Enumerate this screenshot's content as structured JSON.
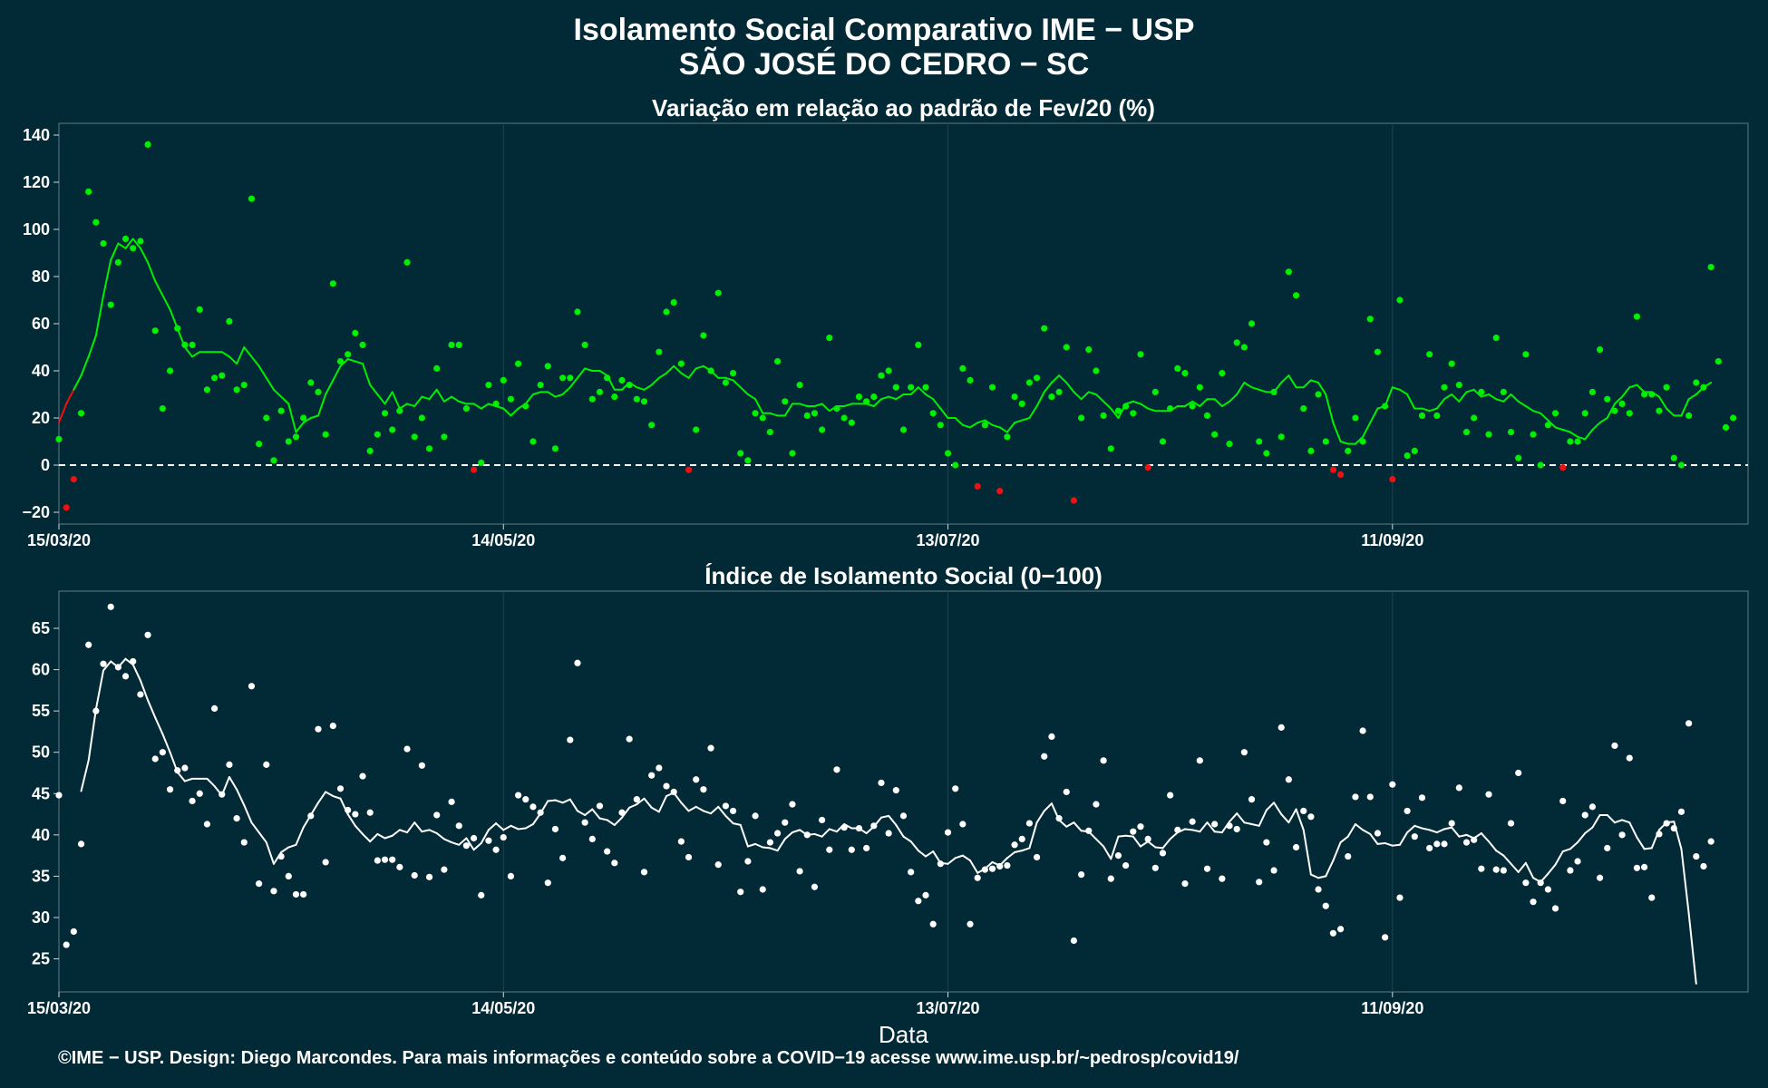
{
  "header": {
    "title": "Isolamento Social Comparativo IME − USP",
    "subtitle": "SÃO JOSÉ DO CEDRO − SC"
  },
  "footer": "©IME − USP. Design: Diego Marcondes. Para mais informações e conteúdo sobre a COVID−19 acesse www.ime.usp.br/~pedrosp/covid19/",
  "colors": {
    "background": "#022a36",
    "above_zero": "#00ee00",
    "below_zero": "#ee1111",
    "index_series": "#ffffff",
    "zero_line": "#ffffff"
  },
  "chart_data": [
    {
      "type": "scatter",
      "title": "Variação em relação ao padrão de Fev/20 (%)",
      "xlabel": "",
      "ylabel": "",
      "xlim": [
        "2020-03-15",
        "2020-10-29"
      ],
      "ylim": [
        -25,
        145
      ],
      "yticks": [
        140,
        120,
        100,
        80,
        60,
        40,
        20,
        0,
        -20
      ],
      "xticks": [
        "15/03/20",
        "14/05/20",
        "13/07/20",
        "11/09/20"
      ],
      "reference_line": 0,
      "grid": true,
      "start_date": "2020-03-15",
      "points": [
        11,
        -18,
        -6,
        22,
        116,
        103,
        94,
        68,
        86,
        96,
        92,
        95,
        136,
        57,
        24,
        40,
        58,
        51,
        51,
        66,
        32,
        37,
        38,
        61,
        32,
        34,
        113,
        9,
        20,
        2,
        23,
        10,
        12,
        20,
        35,
        31,
        13,
        77,
        44,
        47,
        56,
        51,
        6,
        13,
        22,
        15,
        23,
        86,
        12,
        20,
        7,
        41,
        12,
        51,
        51,
        24,
        -2,
        1,
        34,
        26,
        36,
        28,
        43,
        25,
        10,
        34,
        42,
        7,
        37,
        37,
        65,
        51,
        28,
        31,
        37,
        29,
        36,
        34,
        28,
        27,
        17,
        48,
        65,
        69,
        43,
        -2,
        15,
        55,
        40,
        73,
        35,
        39,
        5,
        2,
        22,
        20,
        14,
        44,
        27,
        5,
        34,
        21,
        22,
        15,
        54,
        24,
        20,
        18,
        29,
        27,
        29,
        38,
        40,
        33,
        15,
        33,
        51,
        33,
        22,
        17,
        5,
        0,
        41,
        36,
        -9,
        17,
        33,
        -11,
        12,
        29,
        26,
        35,
        37,
        58,
        29,
        31,
        50,
        -15,
        20,
        49,
        40,
        21,
        7,
        23,
        25,
        22,
        47,
        -1,
        31,
        10,
        24,
        41,
        39,
        25,
        33,
        21,
        13,
        39,
        9,
        52,
        50,
        60,
        10,
        5,
        31,
        12,
        82,
        72,
        24,
        6,
        30,
        10,
        -2,
        -4,
        6,
        20,
        10,
        62,
        48,
        25,
        -6,
        70,
        4,
        6,
        21,
        47,
        21,
        33,
        43,
        34,
        14,
        20,
        31,
        13,
        54,
        31,
        14,
        3,
        47,
        13,
        0,
        17,
        22,
        -1,
        10,
        10,
        22,
        31,
        49,
        28,
        23,
        26,
        22,
        63,
        30,
        30,
        23,
        33,
        3,
        0,
        21,
        35,
        33,
        84,
        44,
        16,
        20
      ],
      "moving_average": [
        18,
        26,
        32,
        38,
        46,
        55,
        72,
        87,
        94,
        92,
        96,
        92,
        86,
        78,
        72,
        66,
        58,
        50,
        46,
        48,
        48,
        48,
        48,
        46,
        43,
        50,
        46,
        42,
        37,
        32,
        29,
        26,
        14,
        18,
        20,
        21,
        30,
        36,
        42,
        45,
        44,
        43,
        34,
        30,
        26,
        31,
        24,
        26,
        25,
        29,
        28,
        32,
        27,
        29,
        27,
        26,
        26,
        24,
        26,
        25,
        24,
        21,
        24,
        26,
        30,
        31,
        31,
        29,
        30,
        33,
        37,
        41,
        40,
        40,
        38,
        32,
        32,
        35,
        33,
        32,
        34,
        37,
        39,
        42,
        39,
        37,
        41,
        42,
        40,
        37,
        37,
        36,
        33,
        30,
        28,
        22,
        22,
        21,
        21,
        26,
        26,
        25,
        25,
        26,
        23,
        25,
        25,
        26,
        26,
        26,
        25,
        28,
        29,
        28,
        30,
        30,
        33,
        30,
        28,
        24,
        20,
        20,
        17,
        16,
        18,
        19,
        17,
        16,
        14,
        18,
        19,
        20,
        25,
        31,
        35,
        38,
        35,
        31,
        28,
        31,
        30,
        27,
        24,
        20,
        26,
        27,
        26,
        24,
        23,
        23,
        23,
        25,
        25,
        27,
        25,
        28,
        28,
        25,
        27,
        30,
        35,
        33,
        32,
        31,
        31,
        35,
        38,
        33,
        33,
        36,
        35,
        30,
        18,
        10,
        9,
        9,
        12,
        18,
        24,
        25,
        33,
        32,
        30,
        24,
        24,
        23,
        24,
        28,
        30,
        27,
        31,
        32,
        29,
        30,
        28,
        27,
        30,
        27,
        25,
        23,
        22,
        19,
        16,
        15,
        14,
        12,
        11,
        15,
        18,
        20,
        26,
        29,
        33,
        34,
        31,
        31,
        29,
        24,
        21,
        21,
        28,
        30,
        33,
        35
      ]
    },
    {
      "type": "scatter",
      "title": "Índice de Isolamento Social (0−100)",
      "xlabel": "Data",
      "ylabel": "",
      "xlim": [
        "2020-03-15",
        "2020-10-29"
      ],
      "ylim": [
        21,
        69.5
      ],
      "yticks": [
        65,
        60,
        55,
        50,
        45,
        40,
        35,
        30,
        25
      ],
      "xticks": [
        "15/03/20",
        "14/05/20",
        "13/07/20",
        "11/09/20"
      ],
      "grid": true,
      "start_date": "2020-03-15",
      "points": [
        44.8,
        26.7,
        28.3,
        38.9,
        63,
        55,
        60.7,
        67.6,
        60.3,
        59.2,
        61,
        57,
        64.2,
        49.2,
        50,
        45.5,
        47.8,
        48.1,
        44.1,
        45,
        41.3,
        55.3,
        44.9,
        48.5,
        42,
        39.1,
        58,
        34.1,
        48.5,
        33.2,
        37.4,
        35,
        32.8,
        32.8,
        42.3,
        52.8,
        36.7,
        53.2,
        45.6,
        43,
        42.5,
        47.1,
        42.7,
        36.9,
        37,
        37,
        36.1,
        50.4,
        35.1,
        48.4,
        34.9,
        42.4,
        35.8,
        44,
        41.1,
        38.7,
        39.6,
        32.7,
        39.3,
        38.2,
        39.7,
        35,
        44.8,
        44.3,
        43.4,
        42.7,
        34.2,
        40.7,
        37.2,
        51.5,
        60.8,
        41.5,
        39.5,
        43.5,
        38,
        36.6,
        42.7,
        51.6,
        44.3,
        35.5,
        47.2,
        48.1,
        45.9,
        45.2,
        39.2,
        37.3,
        46.7,
        45.5,
        50.5,
        36.4,
        43.5,
        42.9,
        33.1,
        36.8,
        42.3,
        33.4,
        39.1,
        40.2,
        41.5,
        43.7,
        35.6,
        40,
        33.7,
        41.8,
        38.2,
        47.9,
        40.9,
        38.2,
        40.8,
        38.4,
        41.1,
        46.3,
        40.2,
        45.4,
        42.3,
        35.5,
        32,
        32.7,
        29.2,
        36.5,
        40.3,
        45.6,
        41.3,
        29.2,
        34.8,
        35.8,
        35.9,
        36.2,
        36.3,
        38.8,
        39.5,
        41.4,
        37.3,
        49.5,
        51.9,
        42,
        45.2,
        27.2,
        35.2,
        40.5,
        43.7,
        49,
        34.7,
        37.5,
        36.3,
        40.4,
        41,
        39.5,
        36,
        37.8,
        44.8,
        40.6,
        34.1,
        41.6,
        49,
        35.9,
        41.3,
        34.7,
        41.1,
        40.7,
        50,
        44.3,
        34.3,
        39.1,
        35.7,
        53,
        46.7,
        38.5,
        42.9,
        42.2,
        33.4,
        31.4,
        28.1,
        28.6,
        37.4,
        44.6,
        52.6,
        44.6,
        40.2,
        27.6,
        46.1,
        32.4,
        42.9,
        39.8,
        44.5,
        38.4,
        38.9,
        38.9,
        41.4,
        45.7,
        39.1,
        39.4,
        35.9,
        44.9,
        35.8,
        35.7,
        41.4,
        47.5,
        34.2,
        31.9,
        34.2,
        33.4,
        31.1,
        44.1,
        35.7,
        36.8,
        42.4,
        43.4,
        34.8,
        38.4,
        50.8,
        40,
        49.3,
        36,
        36.1,
        32.4,
        40.1,
        41.4,
        40.8,
        42.8,
        53.5,
        37.4,
        36.2,
        39.2
      ],
      "moving_average": [
        null,
        null,
        null,
        45.3,
        49,
        55.2,
        59.9,
        61,
        60.3,
        61.3,
        60.6,
        58.7,
        56.3,
        54.2,
        52.2,
        50,
        47.6,
        46.5,
        46.8,
        46.8,
        46.8,
        45.9,
        44.8,
        47,
        45.5,
        43.6,
        41.5,
        40.3,
        39.1,
        36.5,
        37.9,
        38.5,
        38.8,
        40.9,
        42.4,
        43.9,
        45.2,
        44.7,
        44.4,
        42.5,
        41.1,
        40.1,
        39.2,
        40.1,
        39.6,
        39.9,
        40.6,
        40.3,
        41.5,
        40.4,
        40.6,
        40.2,
        39.5,
        39.1,
        38.8,
        39.6,
        38.2,
        39,
        40.6,
        41.4,
        40.6,
        41.1,
        40.7,
        40.8,
        41.3,
        42.6,
        44.1,
        44.2,
        43.9,
        44.3,
        42.9,
        42.4,
        43.1,
        42,
        41.8,
        41.2,
        42.1,
        43.3,
        43.7,
        44.4,
        43.3,
        42.8,
        44.7,
        45.1,
        43.9,
        42.9,
        43.4,
        42.9,
        42.6,
        43.4,
        42.3,
        41.4,
        41.2,
        38.6,
        38.9,
        38.5,
        38.4,
        38.1,
        39.5,
        40.3,
        40.6,
        40,
        40.1,
        39.8,
        40.7,
        40.4,
        41.3,
        40.8,
        40.8,
        40.2,
        41,
        42.1,
        42.3,
        41.2,
        39.8,
        39.2,
        38.1,
        37.4,
        38,
        36.6,
        36.5,
        37.2,
        37.5,
        36.9,
        35.4,
        35.9,
        36.7,
        36.3,
        37.2,
        37.9,
        38.1,
        38.4,
        41.5,
        42.9,
        43.8,
        41.8,
        41,
        41.5,
        40.5,
        40.4,
        39.5,
        38.6,
        37.1,
        39.8,
        39.9,
        39.8,
        38.6,
        39.2,
        38.5,
        38.4,
        39.5,
        40.3,
        40.7,
        40.6,
        40.4,
        41.5,
        40.4,
        40.3,
        41.6,
        42.6,
        41.5,
        41.3,
        41.1,
        43,
        43.9,
        42.5,
        41.5,
        43.1,
        40.6,
        35.2,
        34.8,
        35,
        36.9,
        39.1,
        39.8,
        41.3,
        40.6,
        40.1,
        38.9,
        39,
        38.7,
        38.8,
        40.3,
        41.1,
        40.8,
        40.6,
        40.3,
        40.7,
        40.9,
        39.8,
        40,
        39.6,
        40.2,
        39.2,
        38.1,
        37.5,
        36.5,
        35.5,
        36.6,
        34.8,
        34.3,
        35.3,
        36.4,
        38,
        38.3,
        39.1,
        40.2,
        40.9,
        42.4,
        42.4,
        41.5,
        41.8,
        41.5,
        39.7,
        38.3,
        38.4,
        40.6,
        41.5,
        41.6,
        38.3,
        30.5,
        22
      ]
    }
  ]
}
